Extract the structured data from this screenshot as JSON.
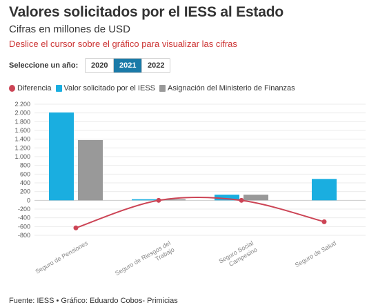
{
  "header": {
    "title": "Valores solicitados por el IESS al Estado",
    "subtitle": "Cifras en millones de USD",
    "hint": "Deslice el cursor sobre el gráfico para visualizar las cifras"
  },
  "year_selector": {
    "label": "Seleccione un año:",
    "options": [
      "2020",
      "2021",
      "2022"
    ],
    "selected": "2021"
  },
  "legend": {
    "items": [
      {
        "name": "Diferencia",
        "color": "#cc4455"
      },
      {
        "name": "Valor solicitado por el IESS",
        "color": "#1aaee0"
      },
      {
        "name": "Asignación del Ministerio de Finanzas",
        "color": "#999999"
      }
    ]
  },
  "chart_data": {
    "type": "bar",
    "categories": [
      "Seguro de Pensiones",
      "Seguro de Riesgos del Trabajo",
      "Seguro Social Campesino",
      "Seguro de Salud"
    ],
    "category_lines": [
      [
        "Seguro de Pensiones"
      ],
      [
        "Seguro de Riesgos del",
        "Trabajo"
      ],
      [
        "Seguro Social",
        "Campesino"
      ],
      [
        "Seguro de Salud"
      ]
    ],
    "series": [
      {
        "name": "Valor solicitado por el IESS",
        "type": "bar",
        "color": "#1aaee0",
        "values": [
          2010,
          25,
          130,
          490
        ]
      },
      {
        "name": "Asignación del Ministerio de Finanzas",
        "type": "bar",
        "color": "#999999",
        "values": [
          1380,
          25,
          130,
          null
        ]
      },
      {
        "name": "Diferencia",
        "type": "line",
        "color": "#cc4455",
        "values": [
          -630,
          0,
          0,
          -490
        ]
      }
    ],
    "yticks": [
      2200,
      2000,
      1800,
      1600,
      1400,
      1200,
      1000,
      800,
      600,
      400,
      200,
      0,
      -200,
      -400,
      -600,
      -800
    ],
    "ytick_labels": [
      "2.200",
      "2.000",
      "1.800",
      "1.600",
      "1.400",
      "1.200",
      "1.000",
      "800",
      "600",
      "400",
      "200",
      "0",
      "-200",
      "-400",
      "-600",
      "-800"
    ],
    "ylim": [
      -800,
      2200
    ],
    "grid": true
  },
  "footer": {
    "source": "Fuente: IESS • Gráfico: Eduardo Cobos- Primicias"
  }
}
